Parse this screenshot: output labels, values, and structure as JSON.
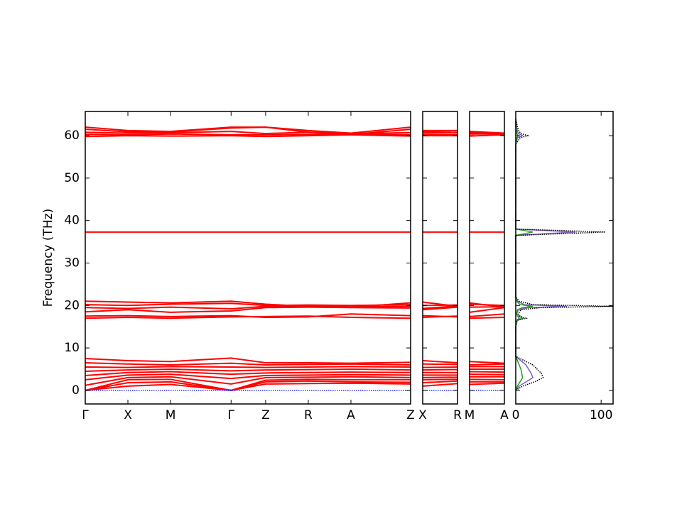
{
  "chart_data": [
    {
      "type": "line",
      "ylabel": "Frequency (THz)",
      "ylim": [
        -3.2,
        65.7
      ],
      "yticks": [
        0,
        10,
        20,
        30,
        40,
        50,
        60
      ],
      "color": "#ff0000",
      "x": [
        0,
        1,
        2,
        3.42,
        4.23,
        5.23,
        6.23,
        7.63
      ],
      "xlim": [
        0,
        7.63
      ],
      "xticks": [
        {
          "value": 0,
          "label": "Γ"
        },
        {
          "value": 1,
          "label": "X"
        },
        {
          "value": 2,
          "label": "M"
        },
        {
          "value": 3.42,
          "label": "Γ"
        },
        {
          "value": 4.23,
          "label": "Z"
        },
        {
          "value": 5.23,
          "label": "R"
        },
        {
          "value": 6.23,
          "label": "A"
        },
        {
          "value": 7.63,
          "label": "Z"
        }
      ],
      "series": [
        {
          "values": [
            0,
            1.0,
            1.4,
            0,
            1.5,
            1.6,
            1.7,
            1.5
          ]
        },
        {
          "values": [
            0,
            1.8,
            2.0,
            0,
            2.0,
            2.2,
            2.0,
            1.9
          ]
        },
        {
          "values": [
            0,
            2.5,
            2.6,
            0,
            2.4,
            2.6,
            2.5,
            2.5
          ]
        },
        {
          "values": [
            1.2,
            3.0,
            3.2,
            1.5,
            3.0,
            3.1,
            3.2,
            3.0
          ]
        },
        {
          "values": [
            2.5,
            3.6,
            3.8,
            2.8,
            3.5,
            3.6,
            3.7,
            3.6
          ]
        },
        {
          "values": [
            3.5,
            4.2,
            4.4,
            3.8,
            4.1,
            4.2,
            4.3,
            4.2
          ]
        },
        {
          "values": [
            4.5,
            4.8,
            5.0,
            4.6,
            4.8,
            4.9,
            5.0,
            4.8
          ]
        },
        {
          "values": [
            5.5,
            5.4,
            5.6,
            5.5,
            5.4,
            5.5,
            5.6,
            5.5
          ]
        },
        {
          "values": [
            6.5,
            6.2,
            6.0,
            6.4,
            6.0,
            6.1,
            6.2,
            6.0
          ]
        },
        {
          "values": [
            7.5,
            7.0,
            6.8,
            7.6,
            6.5,
            6.5,
            6.4,
            6.6
          ]
        },
        {
          "values": [
            17,
            17.2,
            17.0,
            17.3,
            17.4,
            17.5,
            17.2,
            17.0
          ]
        },
        {
          "values": [
            17.5,
            17.6,
            17.4,
            17.6,
            17.2,
            17.3,
            18.0,
            17.6
          ]
        },
        {
          "values": [
            18.5,
            19.0,
            18.4,
            18.7,
            19.5,
            19.6,
            19.5,
            19.4
          ]
        },
        {
          "values": [
            19.5,
            19.3,
            19.6,
            19.2,
            19.8,
            19.9,
            19.7,
            19.8
          ]
        },
        {
          "values": [
            20.2,
            20.0,
            20.3,
            20.5,
            20.0,
            20.1,
            20.0,
            20.2
          ]
        },
        {
          "values": [
            21,
            20.8,
            20.6,
            21.0,
            20.3,
            19.8,
            19.6,
            20.6
          ]
        },
        {
          "values": [
            37.3,
            37.3,
            37.3,
            37.3,
            37.3,
            37.3,
            37.3,
            37.3
          ]
        },
        {
          "values": [
            59.8,
            60.0,
            59.9,
            60.0,
            59.8,
            60.0,
            60.2,
            59.9
          ]
        },
        {
          "values": [
            60.3,
            60.2,
            60.4,
            60.2,
            60.2,
            60.3,
            60.4,
            60.2
          ]
        },
        {
          "values": [
            60.8,
            60.6,
            60.7,
            61.0,
            60.5,
            60.8,
            60.5,
            60.7
          ]
        },
        {
          "values": [
            61.5,
            60.9,
            60.9,
            61.8,
            62.0,
            60.8,
            60.3,
            61.5
          ]
        },
        {
          "values": [
            62.0,
            61.2,
            61.0,
            62.0,
            62.0,
            61.2,
            60.6,
            62.0
          ]
        },
        {
          "values": [
            0,
            0,
            0,
            0,
            0,
            0,
            0,
            0
          ],
          "color": "#0000ff",
          "style": "dotted"
        }
      ]
    },
    {
      "type": "line",
      "color": "#ff0000",
      "x": [
        0,
        1
      ],
      "xlim": [
        0,
        1
      ],
      "xticks": [
        {
          "value": 0,
          "label": "X"
        },
        {
          "value": 1,
          "label": "R"
        }
      ],
      "series": [
        {
          "values": [
            1.0,
            1.6
          ]
        },
        {
          "values": [
            1.8,
            2.2
          ]
        },
        {
          "values": [
            2.5,
            2.6
          ]
        },
        {
          "values": [
            3.0,
            3.1
          ]
        },
        {
          "values": [
            3.6,
            3.6
          ]
        },
        {
          "values": [
            4.2,
            4.2
          ]
        },
        {
          "values": [
            4.8,
            4.9
          ]
        },
        {
          "values": [
            5.4,
            5.5
          ]
        },
        {
          "values": [
            6.2,
            6.1
          ]
        },
        {
          "values": [
            7.0,
            6.5
          ]
        },
        {
          "values": [
            17.2,
            17.5
          ]
        },
        {
          "values": [
            17.6,
            17.3
          ]
        },
        {
          "values": [
            19.0,
            19.6
          ]
        },
        {
          "values": [
            19.3,
            19.9
          ]
        },
        {
          "values": [
            20.0,
            20.1
          ]
        },
        {
          "values": [
            20.8,
            19.8
          ]
        },
        {
          "values": [
            37.3,
            37.3
          ]
        },
        {
          "values": [
            60.0,
            60.0
          ]
        },
        {
          "values": [
            60.2,
            60.3
          ]
        },
        {
          "values": [
            60.6,
            60.8
          ]
        },
        {
          "values": [
            60.9,
            60.8
          ]
        },
        {
          "values": [
            61.2,
            61.2
          ]
        },
        {
          "values": [
            0,
            0
          ],
          "color": "#0000ff",
          "style": "dotted"
        }
      ]
    },
    {
      "type": "line",
      "color": "#ff0000",
      "x": [
        0,
        1
      ],
      "xlim": [
        0,
        1
      ],
      "xticks": [
        {
          "value": 0,
          "label": "M"
        },
        {
          "value": 1,
          "label": "A"
        }
      ],
      "series": [
        {
          "values": [
            1.4,
            1.7
          ]
        },
        {
          "values": [
            2.0,
            2.0
          ]
        },
        {
          "values": [
            2.6,
            2.5
          ]
        },
        {
          "values": [
            3.2,
            3.2
          ]
        },
        {
          "values": [
            3.8,
            3.7
          ]
        },
        {
          "values": [
            4.4,
            4.3
          ]
        },
        {
          "values": [
            5.0,
            5.0
          ]
        },
        {
          "values": [
            5.6,
            5.6
          ]
        },
        {
          "values": [
            6.0,
            6.2
          ]
        },
        {
          "values": [
            6.8,
            6.4
          ]
        },
        {
          "values": [
            17.0,
            17.2
          ]
        },
        {
          "values": [
            17.4,
            18.0
          ]
        },
        {
          "values": [
            18.4,
            19.5
          ]
        },
        {
          "values": [
            19.6,
            19.7
          ]
        },
        {
          "values": [
            20.3,
            20.0
          ]
        },
        {
          "values": [
            20.6,
            19.6
          ]
        },
        {
          "values": [
            37.3,
            37.3
          ]
        },
        {
          "values": [
            59.9,
            60.2
          ]
        },
        {
          "values": [
            60.4,
            60.4
          ]
        },
        {
          "values": [
            60.7,
            60.5
          ]
        },
        {
          "values": [
            60.9,
            60.3
          ]
        },
        {
          "values": [
            61.0,
            60.6
          ]
        },
        {
          "values": [
            0,
            0
          ],
          "color": "#0000ff",
          "style": "dotted"
        }
      ]
    },
    {
      "type": "dos",
      "xlim": [
        0,
        114
      ],
      "xticks": [
        0,
        100
      ],
      "frequencies": [
        0,
        1,
        2,
        3,
        4,
        5,
        6,
        7,
        8,
        15,
        16.5,
        17,
        17.5,
        18,
        19,
        19.5,
        19.8,
        20.2,
        21,
        22,
        36.5,
        37.3,
        38,
        58,
        59.5,
        60,
        60.5,
        61,
        62,
        64
      ],
      "series": [
        {
          "color": "#8060c0",
          "values": [
            0,
            4,
            12,
            20,
            18,
            15,
            12,
            6,
            0,
            0,
            1,
            4,
            2,
            1,
            3,
            15,
            60,
            10,
            2,
            0,
            0,
            70,
            0,
            0,
            2,
            8,
            3,
            2,
            1,
            0
          ]
        },
        {
          "color": "#20a020",
          "values": [
            0,
            2,
            5,
            8,
            7,
            6,
            4,
            2,
            0,
            0,
            1,
            8,
            3,
            1,
            2,
            8,
            20,
            5,
            1,
            0,
            0,
            20,
            0,
            0,
            1,
            3,
            1,
            1,
            0,
            0
          ]
        },
        {
          "color": "#000000",
          "style": "dotted",
          "values": [
            0,
            8,
            22,
            32,
            30,
            25,
            20,
            10,
            0,
            0,
            2,
            12,
            5,
            3,
            6,
            30,
            114,
            20,
            4,
            0,
            0,
            105,
            0,
            0,
            5,
            14,
            6,
            4,
            2,
            0
          ]
        }
      ]
    }
  ]
}
